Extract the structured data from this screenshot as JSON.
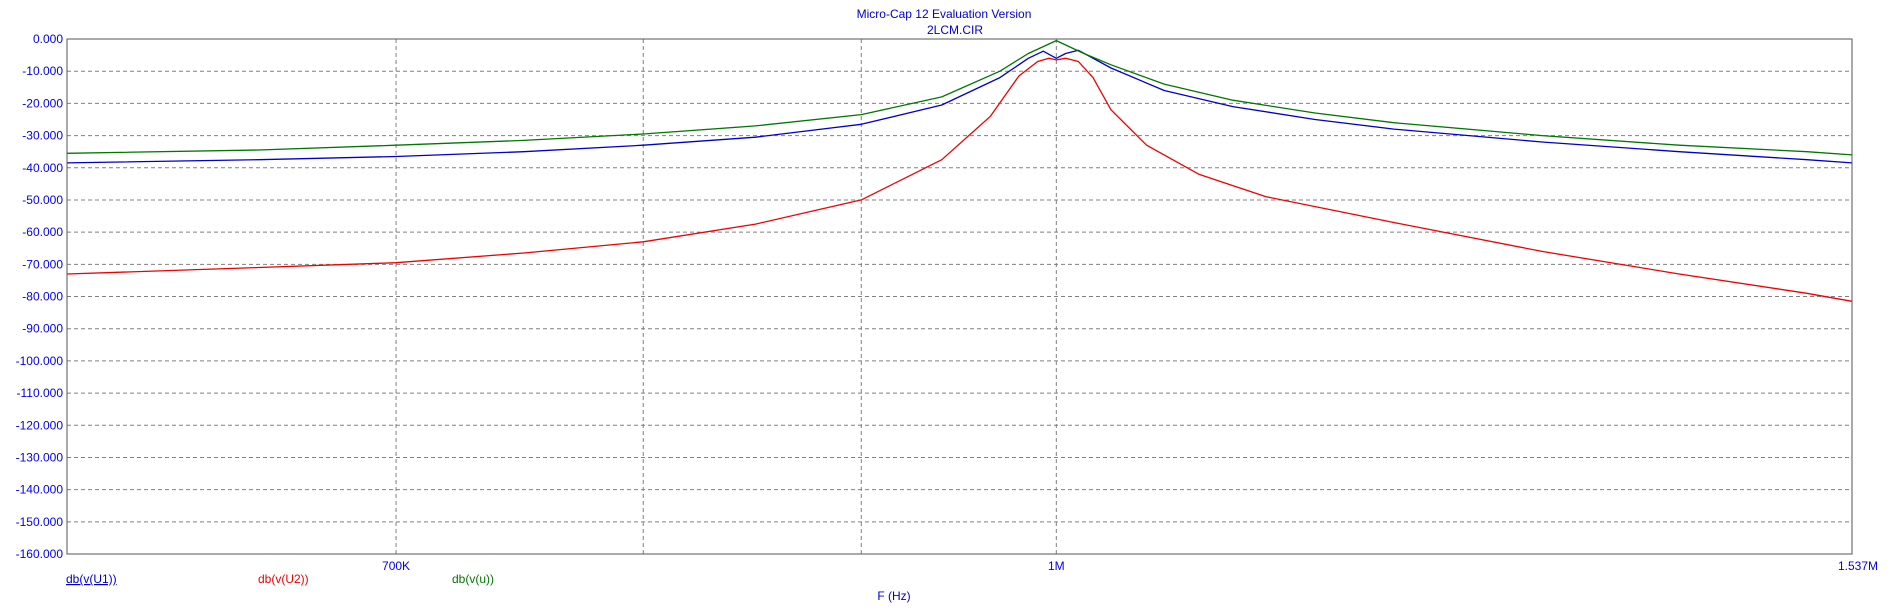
{
  "chart_data": {
    "type": "line",
    "title": "Micro-Cap 12 Evaluation Version",
    "subtitle": "2LCM.CIR",
    "xlabel": "F (Hz)",
    "ylabel": "",
    "x_scale": "log",
    "xlim": [
      586000,
      1537000
    ],
    "ylim": [
      -160,
      0
    ],
    "grid": true,
    "y_ticks": [
      "0.000",
      "-10.000",
      "-20.000",
      "-30.000",
      "-40.000",
      "-50.000",
      "-60.000",
      "-70.000",
      "-80.000",
      "-90.000",
      "-100.000",
      "-110.000",
      "-120.000",
      "-130.000",
      "-140.000",
      "-150.000",
      "-160.000"
    ],
    "x_ticks": [
      {
        "value": 700000,
        "label": "700K"
      },
      {
        "value": 1000000,
        "label": "1M"
      },
      {
        "value": 1537000,
        "label": "1.537M"
      }
    ],
    "x_grid": [
      700000,
      800000,
      900000,
      1000000
    ],
    "legend_position": "bottom-left",
    "series": [
      {
        "name": "db(v(U1))",
        "color": "#0000cc",
        "x": [
          586000,
          650000,
          700000,
          750000,
          800000,
          850000,
          900000,
          940000,
          970000,
          985000,
          993000,
          1000000,
          1005000,
          1012000,
          1030000,
          1060000,
          1100000,
          1150000,
          1200000,
          1300000,
          1400000,
          1500000,
          1537000
        ],
        "y": [
          -38.5,
          -37.5,
          -36.5,
          -35,
          -33,
          -30.5,
          -26.5,
          -20.5,
          -12,
          -6,
          -3.8,
          -6,
          -4.5,
          -3.5,
          -9,
          -16,
          -21,
          -25,
          -28,
          -32,
          -35,
          -37.5,
          -38.5
        ]
      },
      {
        "name": "db(v(U2))",
        "color": "#ee0000",
        "x": [
          586000,
          650000,
          700000,
          750000,
          800000,
          850000,
          900000,
          940000,
          965000,
          980000,
          990000,
          996000,
          1000000,
          1005000,
          1012000,
          1020000,
          1030000,
          1050000,
          1080000,
          1120000,
          1200000,
          1300000,
          1400000,
          1500000,
          1537000
        ],
        "y": [
          -73,
          -71,
          -69.5,
          -66.5,
          -63,
          -57.5,
          -50,
          -37.5,
          -24,
          -11.5,
          -7,
          -6,
          -6.5,
          -6,
          -7,
          -12,
          -22,
          -33,
          -42,
          -49,
          -57,
          -66,
          -73,
          -79,
          -81.5
        ]
      },
      {
        "name": "db(v(u))",
        "color": "#007700",
        "x": [
          586000,
          650000,
          700000,
          750000,
          800000,
          850000,
          900000,
          940000,
          970000,
          985000,
          1000000,
          1015000,
          1030000,
          1060000,
          1100000,
          1150000,
          1200000,
          1300000,
          1400000,
          1500000,
          1537000
        ],
        "y": [
          -35.5,
          -34.5,
          -33,
          -31.5,
          -29.5,
          -27,
          -23.5,
          -18,
          -10,
          -4.5,
          -0.5,
          -4.5,
          -8,
          -14,
          -19,
          -23,
          -26,
          -30,
          -33,
          -35,
          -36
        ]
      }
    ]
  }
}
